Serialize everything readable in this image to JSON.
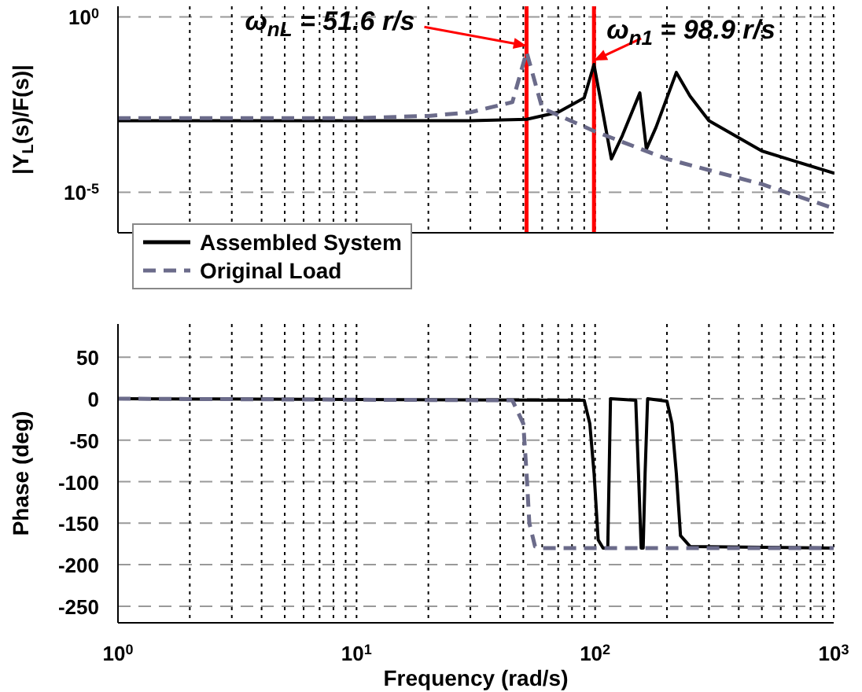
{
  "chart_data": [
    {
      "type": "line",
      "ylabel": "|Y$_{L}$(s)/F(s)|",
      "log": "xy",
      "grid": true,
      "legend": "bottom left",
      "tick_labels": "y",
      "xlim": [
        1,
        1000
      ],
      "xticks": [
        1,
        {
          "value": 2,
          "label": null
        },
        {
          "value": 3,
          "label": null
        },
        {
          "value": 4,
          "label": null
        },
        {
          "value": 5,
          "label": null
        },
        {
          "value": 6,
          "label": null
        },
        {
          "value": 7,
          "label": null
        },
        {
          "value": 8,
          "label": null
        },
        {
          "value": 9,
          "label": null
        },
        10,
        {
          "value": 20,
          "label": null
        },
        {
          "value": 30,
          "label": null
        },
        {
          "value": 40,
          "label": null
        },
        {
          "value": 50,
          "label": null
        },
        {
          "value": 60,
          "label": null
        },
        {
          "value": 70,
          "label": null
        },
        {
          "value": 80,
          "label": null
        },
        {
          "value": 90,
          "label": null
        },
        100,
        {
          "value": 200,
          "label": null
        },
        {
          "value": 300,
          "label": null
        },
        {
          "value": 400,
          "label": null
        },
        {
          "value": 500,
          "label": null
        },
        {
          "value": 600,
          "label": null
        },
        {
          "value": 700,
          "label": null
        },
        {
          "value": 800,
          "label": null
        },
        {
          "value": 900,
          "label": null
        },
        1000
      ],
      "ylim": [
        7e-07,
        2
      ],
      "yticks": [
        {
          "value": 1,
          "label": "10$^{0}$"
        },
        {
          "value": 1e-05,
          "label": "10$^{-5}$"
        }
      ],
      "series": [
        {
          "name": "Assembled System",
          "color": "#000000",
          "line_style": "solid",
          "x": [
            1,
            10,
            30,
            51.6,
            70,
            90,
            98.9,
            105,
            117,
            130,
            154,
            164,
            180,
            219,
            250,
            300,
            500,
            1000
          ],
          "values": [
            0.0011,
            0.0011,
            0.0011,
            0.0012,
            0.0019,
            0.0049,
            0.044,
            0.0049,
            8.9e-05,
            0.00041,
            0.0068,
            0.00017,
            0.00071,
            0.026,
            0.0055,
            0.0011,
            0.00015,
            3.5e-05
          ]
        },
        {
          "name": "Original Load",
          "color": "#6b6b8a",
          "line_style": "dashed",
          "x": [
            1,
            10,
            20,
            30,
            45,
            51.6,
            60,
            100,
            200,
            500,
            1000
          ],
          "values": [
            0.0013,
            0.0013,
            0.0015,
            0.0019,
            0.0037,
            0.1,
            0.0025,
            0.00054,
            8.9e-05,
            1.7e-05,
            3.5e-06
          ]
        }
      ],
      "ref_lines": [
        {
          "axis": "x",
          "value": 51.6,
          "color": "#ff0000"
        },
        {
          "axis": "x",
          "value": 98.9,
          "color": "#ff0000"
        }
      ],
      "annotations": [
        {
          "text": "ω$_{nL}$ = 51.6 r/s",
          "x": 51.6,
          "y": 0.15
        },
        {
          "text": "ω$_{n1}$ = 98.9 r/s",
          "x": 98.9,
          "y": 0.057
        }
      ]
    },
    {
      "type": "line",
      "xlabel": "Frequency (rad/s)",
      "ylabel": "Phase (deg)",
      "log": "x",
      "grid": true,
      "xlim": [
        1,
        1000
      ],
      "xticks": [
        {
          "value": 1,
          "label": "10$^{0}$"
        },
        {
          "value": 2,
          "label": null
        },
        {
          "value": 3,
          "label": null
        },
        {
          "value": 4,
          "label": null
        },
        {
          "value": 5,
          "label": null
        },
        {
          "value": 6,
          "label": null
        },
        {
          "value": 7,
          "label": null
        },
        {
          "value": 8,
          "label": null
        },
        {
          "value": 9,
          "label": null
        },
        {
          "value": 10,
          "label": "10$^{1}$"
        },
        {
          "value": 20,
          "label": null
        },
        {
          "value": 30,
          "label": null
        },
        {
          "value": 40,
          "label": null
        },
        {
          "value": 50,
          "label": null
        },
        {
          "value": 60,
          "label": null
        },
        {
          "value": 70,
          "label": null
        },
        {
          "value": 80,
          "label": null
        },
        {
          "value": 90,
          "label": null
        },
        {
          "value": 100,
          "label": "10$^{2}$"
        },
        {
          "value": 200,
          "label": null
        },
        {
          "value": 300,
          "label": null
        },
        {
          "value": 400,
          "label": null
        },
        {
          "value": 500,
          "label": null
        },
        {
          "value": 600,
          "label": null
        },
        {
          "value": 700,
          "label": null
        },
        {
          "value": 800,
          "label": null
        },
        {
          "value": 900,
          "label": null
        },
        {
          "value": 1000,
          "label": "10$^{3}$"
        }
      ],
      "ylim": [
        -270,
        90
      ],
      "yticks": [
        50,
        0,
        -50,
        -100,
        -150,
        -200,
        -250
      ],
      "series": [
        {
          "color": "#000000",
          "line_style": "solid",
          "x": [
            1,
            90,
            95,
            99,
            103,
            108,
            113,
            116,
            148,
            152,
            156,
            159,
            162,
            166,
            200,
            210,
            219,
            228,
            250,
            1000
          ],
          "values": [
            0,
            -2,
            -30,
            -90,
            -170,
            -180,
            -180,
            0,
            -2,
            -90,
            -180,
            -180,
            -90,
            0,
            -3,
            -30,
            -90,
            -165,
            -178,
            -180
          ]
        },
        {
          "color": "#6b6b8a",
          "line_style": "dashed",
          "x": [
            1,
            45,
            50,
            51.6,
            53,
            56,
            60,
            1000
          ],
          "values": [
            0,
            -2,
            -30,
            -90,
            -150,
            -178,
            -180,
            -180
          ]
        }
      ]
    }
  ]
}
